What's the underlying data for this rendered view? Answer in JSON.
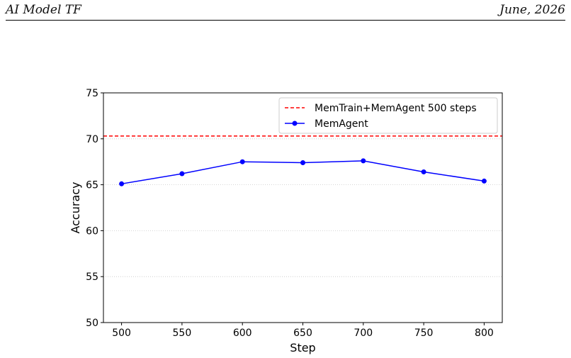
{
  "header": {
    "left": "AI Model TF",
    "right": "June, 2026"
  },
  "chart_data": {
    "type": "line",
    "title": "",
    "xlabel": "Step",
    "ylabel": "Accuracy",
    "xlim": [
      485,
      815
    ],
    "ylim": [
      50,
      75
    ],
    "xticks": [
      500,
      550,
      600,
      650,
      700,
      750,
      800
    ],
    "yticks": [
      50,
      55,
      60,
      65,
      70,
      75
    ],
    "grid": "horizontal dotted",
    "legend_position": "top-right",
    "series": [
      {
        "name": "MemAgent",
        "color": "#0000ff",
        "style": "solid",
        "marker": "circle",
        "x": [
          500,
          550,
          600,
          650,
          700,
          750,
          800
        ],
        "y": [
          65.1,
          66.2,
          67.5,
          67.4,
          67.6,
          66.4,
          65.4
        ]
      }
    ],
    "reference_lines": [
      {
        "name": "MemTrain+MemAgent 500 steps",
        "color": "#ff0000",
        "style": "dashed",
        "y": 70.3
      }
    ]
  }
}
